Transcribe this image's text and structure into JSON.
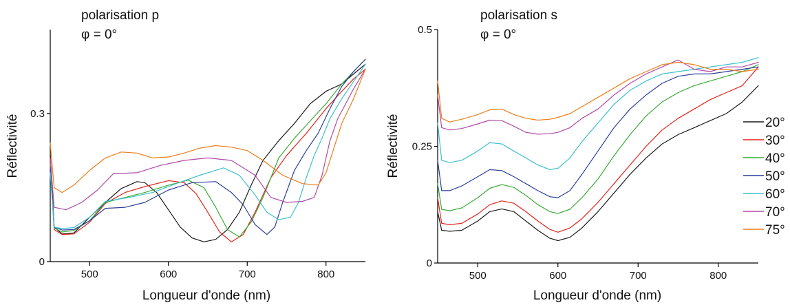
{
  "colors": {
    "20°": "#1a1a1a",
    "30°": "#e2231a",
    "40°": "#3aaa35",
    "50°": "#2b3f9a",
    "60°": "#3cc0d0",
    "70°": "#b04aa8",
    "75°": "#ef7d1a"
  },
  "legend": {
    "entries": [
      "20°",
      "30°",
      "40°",
      "50°",
      "60°",
      "70°",
      "75°"
    ]
  },
  "chart_data": [
    {
      "type": "line",
      "title": "polarisation p",
      "subtitle": "φ = 0°",
      "xlabel": "Longueur d'onde (nm)",
      "ylabel": "Réflectivité",
      "xlim": [
        450,
        850
      ],
      "ylim": [
        0,
        0.47
      ],
      "xticks": [
        500,
        600,
        700,
        800
      ],
      "yticks": [
        0,
        0.3
      ],
      "ytick_labels": [
        "0",
        "0.3"
      ],
      "series": [
        {
          "name": "20°",
          "x": [
            450,
            455,
            465,
            480,
            500,
            520,
            540,
            560,
            570,
            585,
            600,
            615,
            630,
            645,
            660,
            675,
            690,
            705,
            720,
            740,
            760,
            780,
            800,
            820,
            835,
            850
          ],
          "y": [
            0.22,
            0.07,
            0.056,
            0.058,
            0.09,
            0.12,
            0.148,
            0.162,
            0.16,
            0.14,
            0.105,
            0.07,
            0.048,
            0.04,
            0.045,
            0.065,
            0.1,
            0.155,
            0.205,
            0.245,
            0.28,
            0.32,
            0.345,
            0.36,
            0.38,
            0.4
          ]
        },
        {
          "name": "30°",
          "x": [
            450,
            455,
            465,
            480,
            500,
            520,
            545,
            570,
            600,
            620,
            635,
            650,
            665,
            680,
            695,
            710,
            730,
            750,
            775,
            800,
            820,
            835,
            850
          ],
          "y": [
            0.2,
            0.065,
            0.055,
            0.056,
            0.08,
            0.118,
            0.14,
            0.152,
            0.164,
            0.16,
            0.138,
            0.1,
            0.06,
            0.04,
            0.055,
            0.1,
            0.17,
            0.215,
            0.26,
            0.31,
            0.345,
            0.37,
            0.39
          ]
        },
        {
          "name": "40°",
          "x": [
            450,
            455,
            465,
            480,
            500,
            520,
            545,
            570,
            600,
            625,
            645,
            660,
            675,
            690,
            705,
            720,
            740,
            760,
            780,
            800,
            820,
            835,
            850
          ],
          "y": [
            0.2,
            0.068,
            0.06,
            0.063,
            0.083,
            0.12,
            0.13,
            0.14,
            0.155,
            0.165,
            0.15,
            0.11,
            0.065,
            0.05,
            0.08,
            0.13,
            0.21,
            0.25,
            0.285,
            0.32,
            0.36,
            0.385,
            0.41
          ]
        },
        {
          "name": "50°",
          "x": [
            450,
            455,
            465,
            480,
            500,
            520,
            545,
            570,
            600,
            630,
            660,
            680,
            695,
            710,
            725,
            735,
            745,
            760,
            775,
            790,
            805,
            820,
            835,
            850
          ],
          "y": [
            0.19,
            0.07,
            0.064,
            0.065,
            0.083,
            0.108,
            0.11,
            0.12,
            0.145,
            0.16,
            0.162,
            0.14,
            0.115,
            0.075,
            0.055,
            0.07,
            0.12,
            0.185,
            0.225,
            0.26,
            0.31,
            0.355,
            0.385,
            0.41
          ]
        },
        {
          "name": "60°",
          "x": [
            450,
            455,
            465,
            480,
            500,
            520,
            550,
            580,
            610,
            640,
            670,
            690,
            710,
            725,
            740,
            755,
            765,
            775,
            785,
            795,
            805,
            820,
            835,
            850
          ],
          "y": [
            0.18,
            0.07,
            0.067,
            0.069,
            0.09,
            0.122,
            0.13,
            0.14,
            0.158,
            0.175,
            0.19,
            0.175,
            0.135,
            0.1,
            0.085,
            0.09,
            0.12,
            0.17,
            0.215,
            0.25,
            0.29,
            0.33,
            0.365,
            0.4
          ]
        },
        {
          "name": "70°",
          "x": [
            450,
            455,
            470,
            490,
            510,
            530,
            560,
            590,
            620,
            650,
            680,
            710,
            730,
            750,
            770,
            785,
            795,
            805,
            815,
            825,
            835,
            850
          ],
          "y": [
            0.21,
            0.11,
            0.105,
            0.12,
            0.145,
            0.178,
            0.18,
            0.195,
            0.205,
            0.21,
            0.205,
            0.175,
            0.13,
            0.12,
            0.122,
            0.13,
            0.175,
            0.245,
            0.29,
            0.32,
            0.35,
            0.39
          ]
        },
        {
          "name": "75°",
          "x": [
            450,
            455,
            465,
            480,
            500,
            520,
            540,
            560,
            580,
            600,
            620,
            640,
            660,
            680,
            700,
            720,
            745,
            770,
            790,
            800,
            810,
            820,
            835,
            850
          ],
          "y": [
            0.24,
            0.15,
            0.14,
            0.155,
            0.185,
            0.21,
            0.222,
            0.22,
            0.21,
            0.212,
            0.22,
            0.23,
            0.235,
            0.232,
            0.225,
            0.205,
            0.175,
            0.158,
            0.155,
            0.18,
            0.23,
            0.28,
            0.33,
            0.39
          ]
        }
      ]
    },
    {
      "type": "line",
      "title": "polarisation s",
      "subtitle": "φ = 0°",
      "xlabel": "Longueur d'onde (nm)",
      "ylabel": "Réflectivité",
      "xlim": [
        450,
        850
      ],
      "ylim": [
        0,
        0.5
      ],
      "xticks": [
        500,
        600,
        700,
        800
      ],
      "yticks": [
        0,
        0.25,
        0.5
      ],
      "ytick_labels": [
        "0",
        "0.25",
        "0.5"
      ],
      "series": [
        {
          "name": "20°",
          "x": [
            450,
            455,
            465,
            480,
            500,
            515,
            530,
            545,
            560,
            575,
            590,
            600,
            615,
            630,
            650,
            670,
            690,
            710,
            730,
            750,
            770,
            790,
            810,
            830,
            850
          ],
          "y": [
            0.11,
            0.07,
            0.068,
            0.07,
            0.09,
            0.11,
            0.116,
            0.11,
            0.09,
            0.07,
            0.053,
            0.048,
            0.055,
            0.075,
            0.11,
            0.15,
            0.19,
            0.225,
            0.255,
            0.275,
            0.29,
            0.305,
            0.32,
            0.345,
            0.38
          ]
        },
        {
          "name": "30°",
          "x": [
            450,
            455,
            465,
            480,
            500,
            515,
            530,
            545,
            560,
            575,
            590,
            600,
            615,
            630,
            650,
            670,
            690,
            710,
            730,
            750,
            770,
            790,
            810,
            830,
            850
          ],
          "y": [
            0.14,
            0.085,
            0.082,
            0.085,
            0.105,
            0.125,
            0.133,
            0.128,
            0.11,
            0.09,
            0.072,
            0.066,
            0.075,
            0.095,
            0.13,
            0.17,
            0.21,
            0.25,
            0.285,
            0.31,
            0.33,
            0.35,
            0.365,
            0.38,
            0.42
          ]
        },
        {
          "name": "40°",
          "x": [
            450,
            455,
            465,
            480,
            500,
            515,
            530,
            545,
            560,
            575,
            590,
            600,
            615,
            630,
            650,
            670,
            690,
            710,
            730,
            750,
            770,
            790,
            810,
            830,
            850
          ],
          "y": [
            0.17,
            0.115,
            0.112,
            0.118,
            0.14,
            0.16,
            0.168,
            0.162,
            0.145,
            0.125,
            0.11,
            0.106,
            0.115,
            0.14,
            0.18,
            0.23,
            0.275,
            0.315,
            0.345,
            0.365,
            0.38,
            0.39,
            0.4,
            0.41,
            0.425
          ]
        },
        {
          "name": "50°",
          "x": [
            450,
            455,
            465,
            480,
            500,
            515,
            530,
            545,
            560,
            575,
            590,
            600,
            615,
            630,
            650,
            670,
            690,
            710,
            730,
            750,
            770,
            790,
            810,
            830,
            850
          ],
          "y": [
            0.22,
            0.155,
            0.155,
            0.165,
            0.185,
            0.2,
            0.198,
            0.185,
            0.17,
            0.155,
            0.142,
            0.14,
            0.155,
            0.19,
            0.24,
            0.29,
            0.33,
            0.36,
            0.385,
            0.4,
            0.405,
            0.405,
            0.41,
            0.415,
            0.42
          ]
        },
        {
          "name": "60°",
          "x": [
            450,
            455,
            465,
            480,
            500,
            515,
            530,
            545,
            560,
            575,
            590,
            600,
            615,
            630,
            650,
            670,
            690,
            710,
            730,
            750,
            770,
            790,
            810,
            830,
            850
          ],
          "y": [
            0.3,
            0.22,
            0.215,
            0.22,
            0.24,
            0.258,
            0.255,
            0.24,
            0.225,
            0.21,
            0.2,
            0.203,
            0.225,
            0.26,
            0.3,
            0.34,
            0.37,
            0.39,
            0.405,
            0.41,
            0.415,
            0.42,
            0.425,
            0.43,
            0.44
          ]
        },
        {
          "name": "70°",
          "x": [
            450,
            455,
            465,
            480,
            500,
            515,
            530,
            545,
            560,
            575,
            590,
            600,
            615,
            630,
            650,
            670,
            690,
            710,
            730,
            750,
            770,
            790,
            810,
            830,
            850
          ],
          "y": [
            0.36,
            0.29,
            0.285,
            0.288,
            0.298,
            0.306,
            0.305,
            0.293,
            0.28,
            0.276,
            0.277,
            0.28,
            0.29,
            0.31,
            0.33,
            0.36,
            0.385,
            0.405,
            0.42,
            0.435,
            0.415,
            0.41,
            0.42,
            0.42,
            0.43
          ]
        },
        {
          "name": "75°",
          "x": [
            450,
            455,
            465,
            480,
            500,
            515,
            530,
            545,
            560,
            575,
            590,
            600,
            615,
            630,
            650,
            670,
            690,
            710,
            730,
            750,
            770,
            790,
            810,
            830,
            850
          ],
          "y": [
            0.39,
            0.31,
            0.302,
            0.308,
            0.318,
            0.328,
            0.33,
            0.318,
            0.31,
            0.306,
            0.308,
            0.312,
            0.32,
            0.335,
            0.355,
            0.375,
            0.395,
            0.41,
            0.425,
            0.43,
            0.425,
            0.415,
            0.415,
            0.41,
            0.415
          ]
        }
      ]
    }
  ]
}
